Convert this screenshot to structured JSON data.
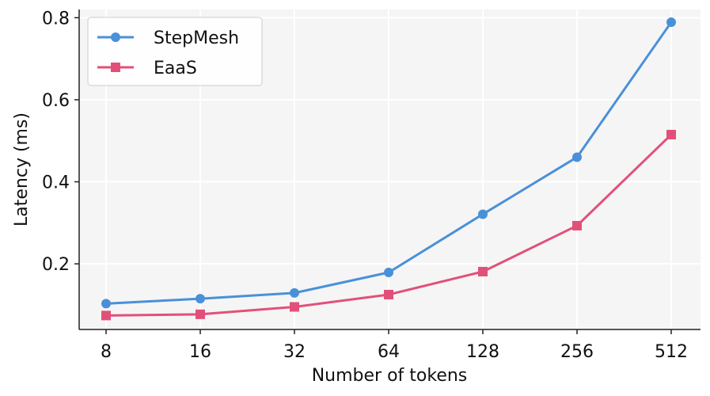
{
  "chart_data": {
    "type": "line",
    "xlabel": "Number of tokens",
    "ylabel": "Latency (ms)",
    "categories": [
      "8",
      "16",
      "32",
      "64",
      "128",
      "256",
      "512"
    ],
    "ylim": [
      0.04,
      0.82
    ],
    "yticks": [
      "0.2",
      "0.4",
      "0.6",
      "0.8"
    ],
    "grid": true,
    "legend_position": "top-left",
    "series": [
      {
        "name": "StepMesh",
        "color": "#4a90d9",
        "marker": "circle",
        "values": [
          0.103,
          0.115,
          0.129,
          0.179,
          0.321,
          0.46,
          0.789
        ]
      },
      {
        "name": "EaaS",
        "color": "#e2507a",
        "marker": "square",
        "values": [
          0.074,
          0.077,
          0.095,
          0.125,
          0.181,
          0.293,
          0.515
        ]
      }
    ]
  }
}
